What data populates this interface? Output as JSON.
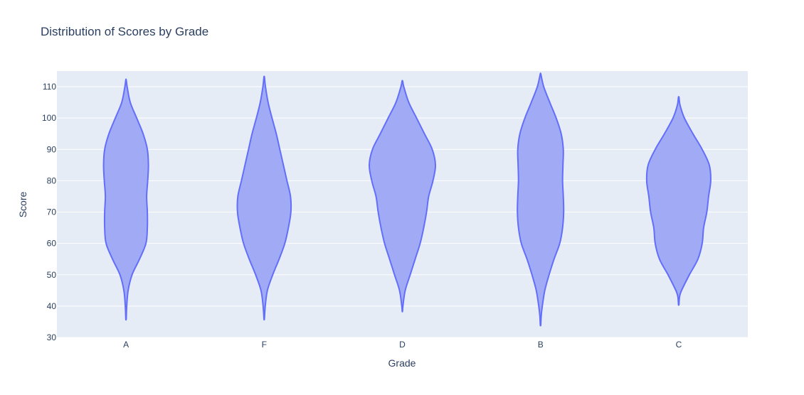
{
  "chart_data": {
    "type": "violin",
    "title": "Distribution of Scores by Grade",
    "xlabel": "Grade",
    "ylabel": "Score",
    "ylim": [
      30,
      115
    ],
    "yticks": [
      30,
      40,
      50,
      60,
      70,
      80,
      90,
      100,
      110
    ],
    "grid": true,
    "legend": "none",
    "colors": {
      "plot_bg": "#e5ecf6",
      "grid": "#ffffff",
      "fill": "#a1abf5",
      "stroke": "#636efa",
      "text": "#2a3f5f"
    },
    "categories": [
      "A",
      "F",
      "D",
      "B",
      "C"
    ],
    "violins": [
      {
        "category": "A",
        "min": 35.8,
        "max": 112.4,
        "profile": [
          [
            36,
            0.3
          ],
          [
            40,
            1.0
          ],
          [
            45,
            3.0
          ],
          [
            50,
            8.5
          ],
          [
            55,
            19
          ],
          [
            60,
            28
          ],
          [
            65,
            30
          ],
          [
            70,
            30
          ],
          [
            75,
            29
          ],
          [
            80,
            30.5
          ],
          [
            85,
            31.5
          ],
          [
            90,
            30
          ],
          [
            95,
            24
          ],
          [
            100,
            15
          ],
          [
            105,
            6
          ],
          [
            110,
            1.6
          ],
          [
            112,
            0.4
          ]
        ]
      },
      {
        "category": "F",
        "min": 35.8,
        "max": 113.2,
        "profile": [
          [
            36,
            0.3
          ],
          [
            40,
            1.5
          ],
          [
            45,
            4.5
          ],
          [
            50,
            12
          ],
          [
            55,
            21
          ],
          [
            60,
            29
          ],
          [
            65,
            34
          ],
          [
            70,
            37.5
          ],
          [
            75,
            37
          ],
          [
            80,
            32
          ],
          [
            85,
            27
          ],
          [
            90,
            22
          ],
          [
            95,
            17
          ],
          [
            100,
            11
          ],
          [
            105,
            5.5
          ],
          [
            110,
            1.8
          ],
          [
            113,
            0.4
          ]
        ]
      },
      {
        "category": "D",
        "min": 38.2,
        "max": 111.8,
        "profile": [
          [
            38.5,
            0.3
          ],
          [
            40,
            0.8
          ],
          [
            45,
            4
          ],
          [
            50,
            11
          ],
          [
            55,
            18
          ],
          [
            60,
            25
          ],
          [
            65,
            30
          ],
          [
            70,
            34
          ],
          [
            75,
            37
          ],
          [
            80,
            43
          ],
          [
            85,
            46.5
          ],
          [
            90,
            42
          ],
          [
            95,
            31
          ],
          [
            100,
            20
          ],
          [
            105,
            9
          ],
          [
            110,
            2
          ],
          [
            111.8,
            0.4
          ]
        ]
      },
      {
        "category": "B",
        "min": 34,
        "max": 114,
        "profile": [
          [
            34,
            0.3
          ],
          [
            37,
            1
          ],
          [
            40,
            2.5
          ],
          [
            45,
            6
          ],
          [
            50,
            12
          ],
          [
            55,
            19
          ],
          [
            60,
            27
          ],
          [
            65,
            31
          ],
          [
            70,
            32.5
          ],
          [
            75,
            32
          ],
          [
            80,
            31
          ],
          [
            85,
            31.5
          ],
          [
            90,
            32
          ],
          [
            95,
            29
          ],
          [
            100,
            22
          ],
          [
            105,
            13
          ],
          [
            110,
            4.5
          ],
          [
            114,
            0.4
          ]
        ]
      },
      {
        "category": "C",
        "min": 40.5,
        "max": 106.6,
        "profile": [
          [
            40.5,
            0.3
          ],
          [
            43,
            1.2
          ],
          [
            45,
            4
          ],
          [
            50,
            15
          ],
          [
            55,
            27
          ],
          [
            60,
            33
          ],
          [
            65,
            35
          ],
          [
            70,
            39.5
          ],
          [
            75,
            42
          ],
          [
            80,
            45
          ],
          [
            85,
            43
          ],
          [
            90,
            33
          ],
          [
            95,
            20
          ],
          [
            100,
            8
          ],
          [
            104,
            2
          ],
          [
            106.6,
            0.4
          ]
        ]
      }
    ]
  }
}
